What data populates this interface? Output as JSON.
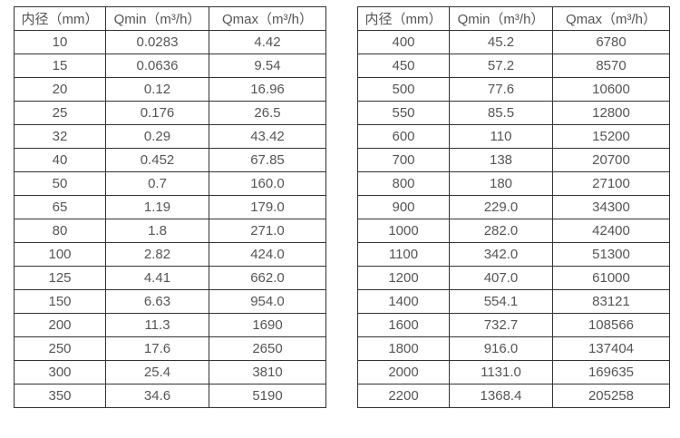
{
  "style": {
    "border_color": "#333333",
    "text_color": "#555555",
    "background": "#ffffff"
  },
  "chart_data": [
    {
      "type": "table",
      "name": "flow-range-table-small-diameters",
      "columns": [
        "内径（mm）",
        "Qmin（m³/h）",
        "Qmax（m³/h）"
      ],
      "rows": [
        [
          "10",
          "0.0283",
          "4.42"
        ],
        [
          "15",
          "0.0636",
          "9.54"
        ],
        [
          "20",
          "0.12",
          "16.96"
        ],
        [
          "25",
          "0.176",
          "26.5"
        ],
        [
          "32",
          "0.29",
          "43.42"
        ],
        [
          "40",
          "0.452",
          "67.85"
        ],
        [
          "50",
          "0.7",
          "160.0"
        ],
        [
          "65",
          "1.19",
          "179.0"
        ],
        [
          "80",
          "1.8",
          "271.0"
        ],
        [
          "100",
          "2.82",
          "424.0"
        ],
        [
          "125",
          "4.41",
          "662.0"
        ],
        [
          "150",
          "6.63",
          "954.0"
        ],
        [
          "200",
          "11.3",
          "1690"
        ],
        [
          "250",
          "17.6",
          "2650"
        ],
        [
          "300",
          "25.4",
          "3810"
        ],
        [
          "350",
          "34.6",
          "5190"
        ]
      ]
    },
    {
      "type": "table",
      "name": "flow-range-table-large-diameters",
      "columns": [
        "内径（mm）",
        "Qmin（m³/h）",
        "Qmax（m³/h）"
      ],
      "rows": [
        [
          "400",
          "45.2",
          "6780"
        ],
        [
          "450",
          "57.2",
          "8570"
        ],
        [
          "500",
          "77.6",
          "10600"
        ],
        [
          "550",
          "85.5",
          "12800"
        ],
        [
          "600",
          "110",
          "15200"
        ],
        [
          "700",
          "138",
          "20700"
        ],
        [
          "800",
          "180",
          "27100"
        ],
        [
          "900",
          "229.0",
          "34300"
        ],
        [
          "1000",
          "282.0",
          "42400"
        ],
        [
          "1100",
          "342.0",
          "51300"
        ],
        [
          "1200",
          "407.0",
          "61000"
        ],
        [
          "1400",
          "554.1",
          "83121"
        ],
        [
          "1600",
          "732.7",
          "108566"
        ],
        [
          "1800",
          "916.0",
          "137404"
        ],
        [
          "2000",
          "1131.0",
          "169635"
        ],
        [
          "2200",
          "1368.4",
          "205258"
        ]
      ]
    }
  ]
}
